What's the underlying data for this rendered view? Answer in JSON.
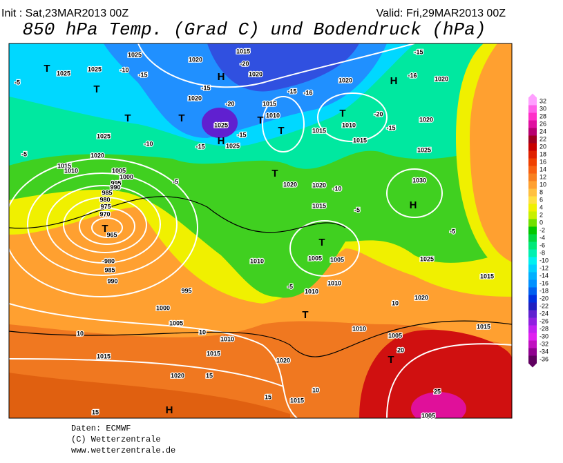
{
  "header": {
    "init": "Init : Sat,23MAR2013 00Z",
    "valid": "Valid: Fri,29MAR2013 00Z",
    "title": "850 hPa Temp. (Grad C) und Bodendruck (hPa)"
  },
  "map": {
    "labels": [
      "1025",
      "1025",
      "1025",
      "-10",
      "-15",
      "1020",
      "1015",
      "-20",
      "1020",
      "-15",
      "1020",
      "-20",
      "1015",
      "1010",
      "1025",
      "-15",
      "1025",
      "-15",
      "1025",
      "-10",
      "1020",
      "1015",
      "1010",
      "1005",
      "1000",
      "995",
      "990",
      "985",
      "980",
      "975",
      "970",
      "965",
      "-980",
      "985",
      "990",
      "995",
      "1000",
      "1005",
      "1010",
      "1015",
      "1015",
      "1020",
      "1020",
      "1015",
      "1005",
      "1005",
      "1010",
      "1015",
      "1015",
      "1020",
      "1025",
      "1030",
      "1025",
      "1020",
      "1020",
      "1015",
      "1010",
      "1020",
      "1015",
      "1020",
      "1020",
      "1015",
      "1010",
      "1005",
      "1005",
      "1010",
      "1010",
      "-5",
      "-5",
      "-5",
      "10",
      "10",
      "15",
      "15",
      "15",
      "10",
      "20",
      "25",
      "10",
      "-5",
      "-5",
      "-5",
      "-10",
      "-15",
      "-16",
      "-20",
      "-15",
      "-15",
      "-16",
      "T",
      "T",
      "T",
      "T",
      "T",
      "T",
      "T",
      "T",
      "H",
      "H",
      "H",
      "H",
      "H",
      "T",
      "T",
      "T",
      "T"
    ]
  },
  "legend": {
    "values": [
      32,
      30,
      28,
      26,
      24,
      22,
      20,
      18,
      16,
      14,
      12,
      10,
      8,
      6,
      4,
      2,
      0,
      -2,
      -4,
      -6,
      -8,
      -10,
      -12,
      -14,
      -16,
      -18,
      -20,
      -22,
      -24,
      -26,
      -28,
      -30,
      -32,
      -34,
      -36
    ],
    "colors": [
      "#ffa0ff",
      "#ff60e8",
      "#ff30c8",
      "#e010a0",
      "#b80070",
      "#a00020",
      "#c80000",
      "#e02000",
      "#f04000",
      "#f86010",
      "#f88020",
      "#ffa030",
      "#ffc040",
      "#ffe040",
      "#f0f000",
      "#c8f000",
      "#70e000",
      "#00c800",
      "#00d840",
      "#00e878",
      "#00f0b0",
      "#00f0f0",
      "#00d0ff",
      "#00b0ff",
      "#0090ff",
      "#0060f0",
      "#0030e0",
      "#2020c0",
      "#6020d0",
      "#9020e0",
      "#c020f0",
      "#e020f0",
      "#c010c0",
      "#900090",
      "#600060"
    ]
  },
  "footer": [
    "Daten: ECMWF",
    "(C) Wetterzentrale",
    "www.wetterzentrale.de"
  ]
}
